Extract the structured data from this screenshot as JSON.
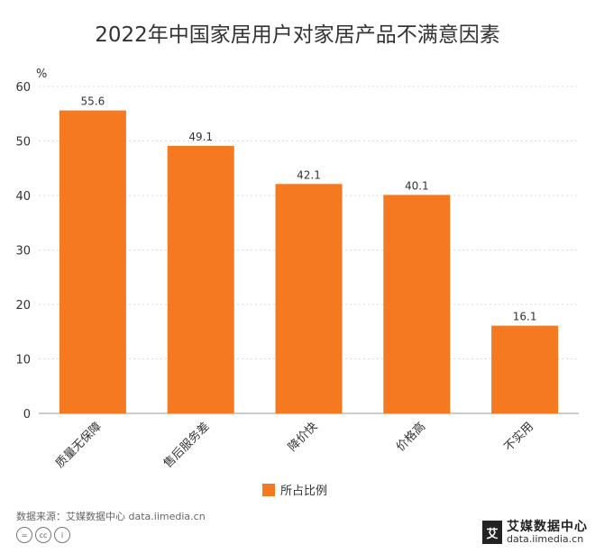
{
  "chart_data": {
    "type": "bar",
    "title": "2022年中国家居用户对家居产品不满意因素",
    "unit_label": "%",
    "categories": [
      "质量无保障",
      "售后服务差",
      "降价快",
      "价格高",
      "不实用"
    ],
    "series": [
      {
        "name": "所占比例",
        "values": [
          55.6,
          49.1,
          42.1,
          40.1,
          16.1
        ]
      }
    ],
    "ylim": [
      0,
      60
    ],
    "yticks": [
      0,
      10,
      20,
      30,
      40,
      50,
      60
    ],
    "grid": true,
    "legend_position": "bottom-center",
    "bar_color": "#F47920"
  },
  "footer": {
    "source": "数据来源：艾媒数据中心 data.iimedia.cn",
    "brand_name": "艾媒数据中心",
    "brand_url": "data.iimedia.cn",
    "brand_badge": "艾",
    "cc_icons": [
      "=",
      "cc",
      "i"
    ]
  }
}
